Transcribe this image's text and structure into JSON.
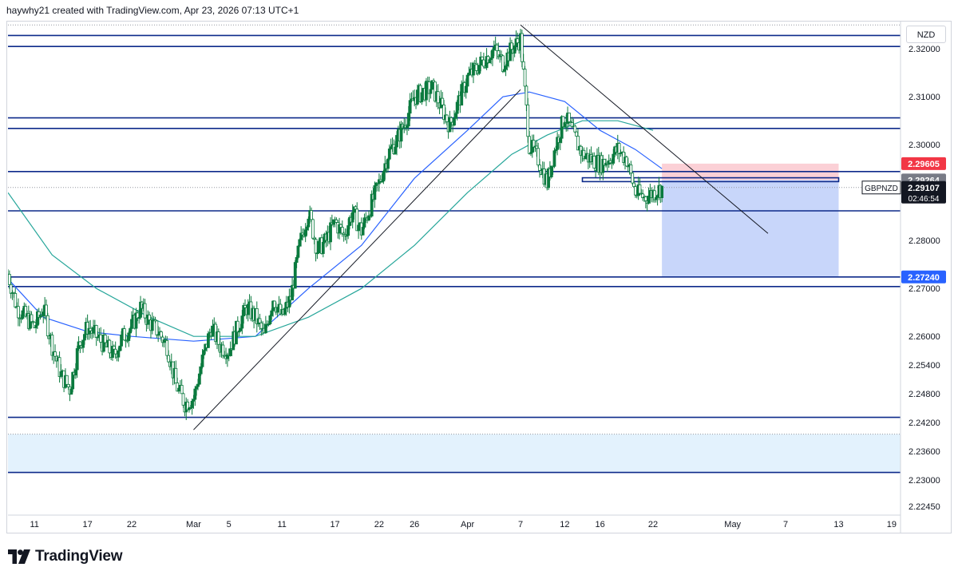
{
  "header": {
    "attribution": "haywhy21 created with TradingView.com, Apr 23, 2026 07:13 UTC+1"
  },
  "currency_button": "NZD",
  "footer": {
    "brand": "TradingView"
  },
  "colors": {
    "candle": "#0b7a3e",
    "line_blue": "#2962ff",
    "line_green": "#26a69a",
    "zone_border": "#0d2a8a",
    "zone_fill": "#e3f2fd",
    "target_fill": "#c8d6fa",
    "stop_fill": "#fbd0d6",
    "stop_tag": "#f23645",
    "price_tag": "#131722",
    "level_tag": "#2962ff",
    "gray_tag": "#787b86"
  },
  "chart_data": {
    "type": "candlestick",
    "symbol": "GBPNZD",
    "last_price": "2.29107",
    "countdown": "02:46:54",
    "y_axis": {
      "range": [
        2.2227,
        2.3257
      ],
      "ticks": [
        "2.32000",
        "2.31000",
        "2.30000",
        "2.28000",
        "2.27000",
        "2.26000",
        "2.25400",
        "2.24800",
        "2.24200",
        "2.23600",
        "2.23000",
        "2.22450"
      ]
    },
    "x_axis": {
      "range_days": [
        "Feb 8",
        "May 20"
      ],
      "ticks": [
        {
          "label": "11",
          "date": "Feb 11"
        },
        {
          "label": "17",
          "date": "Feb 17"
        },
        {
          "label": "22",
          "date": "Feb 22"
        },
        {
          "label": "Mar",
          "date": "Mar 1"
        },
        {
          "label": "5",
          "date": "Mar 5"
        },
        {
          "label": "11",
          "date": "Mar 11"
        },
        {
          "label": "17",
          "date": "Mar 17"
        },
        {
          "label": "22",
          "date": "Mar 22"
        },
        {
          "label": "26",
          "date": "Mar 26"
        },
        {
          "label": "Apr",
          "date": "Apr 1"
        },
        {
          "label": "7",
          "date": "Apr 7"
        },
        {
          "label": "12",
          "date": "Apr 12"
        },
        {
          "label": "16",
          "date": "Apr 16"
        },
        {
          "label": "22",
          "date": "Apr 22"
        },
        {
          "label": "May",
          "date": "May 1"
        },
        {
          "label": "7",
          "date": "May 7"
        },
        {
          "label": "13",
          "date": "May 13"
        },
        {
          "label": "19",
          "date": "May 19"
        }
      ]
    },
    "price_tags": [
      {
        "label": "2.29605",
        "value": 2.29605,
        "style": "stop"
      },
      {
        "label": "2.29264",
        "value": 2.29264,
        "style": "gray"
      },
      {
        "label": "2.27240",
        "value": 2.2724,
        "style": "level"
      }
    ],
    "close_path": [
      [
        "Feb 8",
        2.273
      ],
      [
        "Feb 9",
        2.266
      ],
      [
        "Feb 10",
        2.264
      ],
      [
        "Feb 11",
        2.262
      ],
      [
        "Feb 12",
        2.266
      ],
      [
        "Feb 13",
        2.258
      ],
      [
        "Feb 14",
        2.252
      ],
      [
        "Feb 15",
        2.249
      ],
      [
        "Feb 16",
        2.258
      ],
      [
        "Feb 17",
        2.262
      ],
      [
        "Feb 18",
        2.26
      ],
      [
        "Feb 19",
        2.258
      ],
      [
        "Feb 20",
        2.256
      ],
      [
        "Feb 21",
        2.26
      ],
      [
        "Feb 22",
        2.262
      ],
      [
        "Feb 23",
        2.266
      ],
      [
        "Feb 24",
        2.263
      ],
      [
        "Feb 25",
        2.261
      ],
      [
        "Feb 26",
        2.258
      ],
      [
        "Feb 27",
        2.25
      ],
      [
        "Feb 28",
        2.246
      ],
      [
        "Mar 1",
        2.247
      ],
      [
        "Mar 2",
        2.255
      ],
      [
        "Mar 3",
        2.262
      ],
      [
        "Mar 4",
        2.258
      ],
      [
        "Mar 5",
        2.257
      ],
      [
        "Mar 6",
        2.262
      ],
      [
        "Mar 7",
        2.266
      ],
      [
        "Mar 8",
        2.264
      ],
      [
        "Mar 9",
        2.26
      ],
      [
        "Mar 10",
        2.268
      ],
      [
        "Mar 11",
        2.264
      ],
      [
        "Mar 12",
        2.268
      ],
      [
        "Mar 13",
        2.279
      ],
      [
        "Mar 14",
        2.286
      ],
      [
        "Mar 15",
        2.278
      ],
      [
        "Mar 16",
        2.28
      ],
      [
        "Mar 17",
        2.284
      ],
      [
        "Mar 18",
        2.281
      ],
      [
        "Mar 19",
        2.286
      ],
      [
        "Mar 20",
        2.282
      ],
      [
        "Mar 21",
        2.287
      ],
      [
        "Mar 22",
        2.292
      ],
      [
        "Mar 23",
        2.298
      ],
      [
        "Mar 24",
        2.301
      ],
      [
        "Mar 25",
        2.305
      ],
      [
        "Mar 26",
        2.31
      ],
      [
        "Mar 27",
        2.311
      ],
      [
        "Mar 28",
        2.312
      ],
      [
        "Mar 29",
        2.308
      ],
      [
        "Mar 30",
        2.304
      ],
      [
        "Mar 31",
        2.309
      ],
      [
        "Apr 1",
        2.314
      ],
      [
        "Apr 2",
        2.316
      ],
      [
        "Apr 3",
        2.318
      ],
      [
        "Apr 4",
        2.32
      ],
      [
        "Apr 5",
        2.317
      ],
      [
        "Apr 6",
        2.32
      ],
      [
        "Apr 7",
        2.322
      ],
      [
        "Apr 8",
        2.3
      ],
      [
        "Apr 9",
        2.297
      ],
      [
        "Apr 10",
        2.292
      ],
      [
        "Apr 11",
        2.3
      ],
      [
        "Apr 12",
        2.306
      ],
      [
        "Apr 13",
        2.302
      ],
      [
        "Apr 14",
        2.298
      ],
      [
        "Apr 15",
        2.297
      ],
      [
        "Apr 16",
        2.296
      ],
      [
        "Apr 17",
        2.297
      ],
      [
        "Apr 18",
        2.299
      ],
      [
        "Apr 19",
        2.297
      ],
      [
        "Apr 20",
        2.29
      ],
      [
        "Apr 21",
        2.289
      ],
      [
        "Apr 22",
        2.29
      ],
      [
        "Apr 23",
        2.291
      ]
    ],
    "moving_averages": [
      {
        "color_key": "line_blue",
        "points": [
          [
            "Feb 8",
            2.272
          ],
          [
            "Feb 12",
            2.264
          ],
          [
            "Feb 17",
            2.261
          ],
          [
            "Feb 22",
            2.26
          ],
          [
            "Mar 1",
            2.259
          ],
          [
            "Mar 8",
            2.26
          ],
          [
            "Mar 14",
            2.27
          ],
          [
            "Mar 20",
            2.279
          ],
          [
            "Mar 26",
            2.293
          ],
          [
            "Apr 1",
            2.303
          ],
          [
            "Apr 5",
            2.31
          ],
          [
            "Apr 8",
            2.311
          ],
          [
            "Apr 12",
            2.309
          ],
          [
            "Apr 16",
            2.303
          ],
          [
            "Apr 20",
            2.299
          ],
          [
            "Apr 23",
            2.295
          ]
        ]
      },
      {
        "color_key": "line_green",
        "points": [
          [
            "Feb 8",
            2.29
          ],
          [
            "Feb 13",
            2.277
          ],
          [
            "Feb 18",
            2.27
          ],
          [
            "Feb 24",
            2.264
          ],
          [
            "Mar 1",
            2.26
          ],
          [
            "Mar 8",
            2.26
          ],
          [
            "Mar 14",
            2.264
          ],
          [
            "Mar 20",
            2.27
          ],
          [
            "Mar 26",
            2.279
          ],
          [
            "Apr 1",
            2.29
          ],
          [
            "Apr 6",
            2.298
          ],
          [
            "Apr 10",
            2.302
          ],
          [
            "Apr 14",
            2.305
          ],
          [
            "Apr 18",
            2.305
          ],
          [
            "Apr 22",
            2.303
          ]
        ]
      }
    ],
    "horizontal_lines": [
      {
        "value": 2.3228
      },
      {
        "value": 2.3205
      },
      {
        "value": 2.3056
      },
      {
        "value": 2.3034
      },
      {
        "value": 2.2944
      },
      {
        "value": 2.2862
      },
      {
        "value": 2.2724
      },
      {
        "value": 2.2704
      },
      {
        "value": 2.2431
      },
      {
        "value": 2.2316
      }
    ],
    "dotted_lines": [
      {
        "value": 2.325
      },
      {
        "value": 2.29107
      },
      {
        "value": 2.2396
      }
    ],
    "zones": [
      {
        "from": 2.2316,
        "to": 2.2396,
        "fill_key": "zone_fill"
      }
    ],
    "small_box": {
      "from_date": "Apr 14",
      "to_date": "May 13",
      "low": 2.2923,
      "high": 2.2931
    },
    "trendlines": [
      {
        "from": [
          "Mar 1",
          2.2405
        ],
        "to": [
          "Apr 7",
          2.3115
        ]
      },
      {
        "from": [
          "Apr 7",
          2.325
        ],
        "to": [
          "May 5",
          2.2815
        ]
      }
    ],
    "position": {
      "from_date": "Apr 23",
      "to_date": "May 13",
      "entry": 2.29264,
      "stop": 2.29605,
      "target": 2.2724
    }
  }
}
